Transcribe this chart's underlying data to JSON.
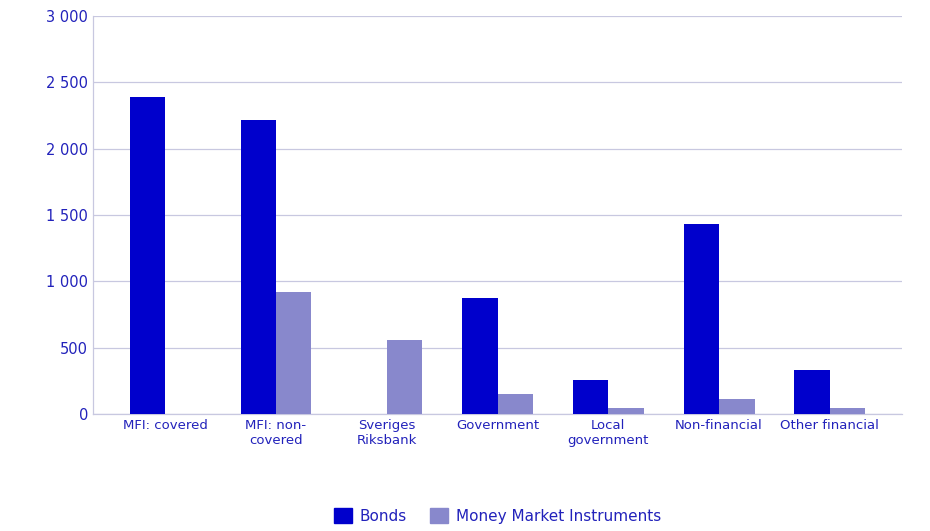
{
  "categories": [
    "MFI: covered",
    "MFI: non-\ncovered",
    "Sveriges\nRiksbank",
    "Government",
    "Local\ngovernment",
    "Non-financial",
    "Other financial"
  ],
  "bonds": [
    2390,
    2215,
    0,
    875,
    255,
    1430,
    335
  ],
  "mmi": [
    0,
    920,
    560,
    155,
    45,
    115,
    45
  ],
  "bonds_color": "#0000cc",
  "mmi_color": "#8888cc",
  "ylim": [
    0,
    3000
  ],
  "yticks": [
    0,
    500,
    1000,
    1500,
    2000,
    2500,
    3000
  ],
  "ytick_labels": [
    "0",
    "500",
    "1 000",
    "1 500",
    "2 000",
    "2 500",
    "3 000"
  ],
  "legend_bonds": "Bonds",
  "legend_mmi": "Money Market Instruments",
  "bar_width": 0.32,
  "background_color": "#ffffff",
  "grid_color": "#c8c8e0",
  "text_color": "#2222bb",
  "label_fontsize": 9.5,
  "legend_fontsize": 11,
  "tick_label_fontsize": 10.5
}
